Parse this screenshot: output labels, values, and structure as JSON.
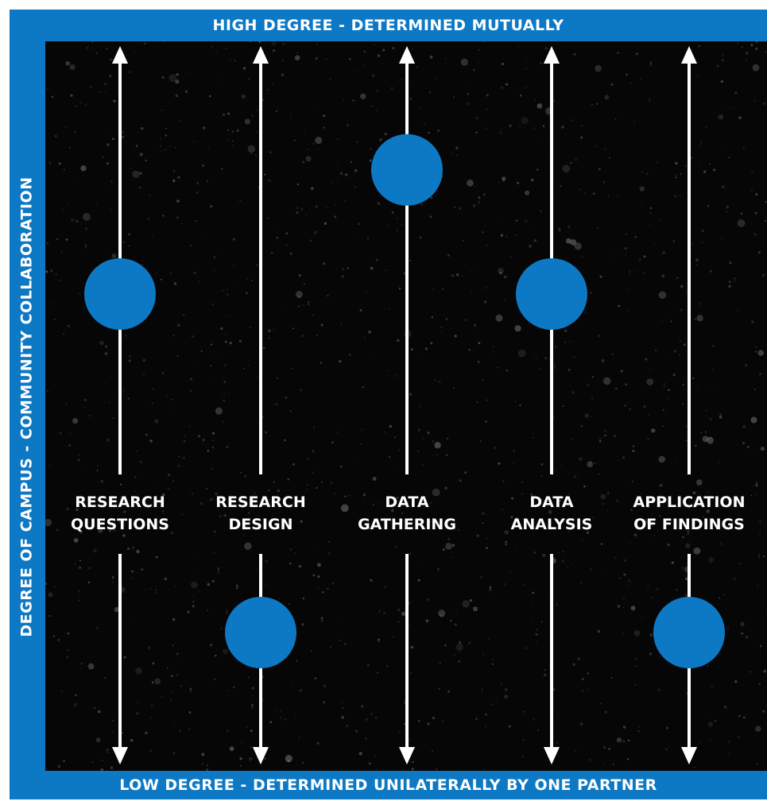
{
  "labels": {
    "top": "HIGH DEGREE - DETERMINED MUTUALLY",
    "bottom": "LOW DEGREE - DETERMINED UNILATERALLY BY ONE PARTNER",
    "side": "DEGREE OF CAMPUS - COMMUNITY COLLABORATION"
  },
  "colors": {
    "frame": "#0d78c4",
    "panel": "#060606",
    "dot": "#0d78c4",
    "arrow": "#ffffff"
  },
  "columns": [
    {
      "line1": "RESEARCH",
      "line2": "QUESTIONS",
      "level": 0.7
    },
    {
      "line1": "RESEARCH",
      "line2": "DESIGN",
      "level": 0.1
    },
    {
      "line1": "DATA",
      "line2": "GATHERING",
      "level": 0.92
    },
    {
      "line1": "DATA",
      "line2": "ANALYSIS",
      "level": 0.7
    },
    {
      "line1": "APPLICATION",
      "line2": "OF FINDINGS",
      "level": 0.1
    }
  ]
}
